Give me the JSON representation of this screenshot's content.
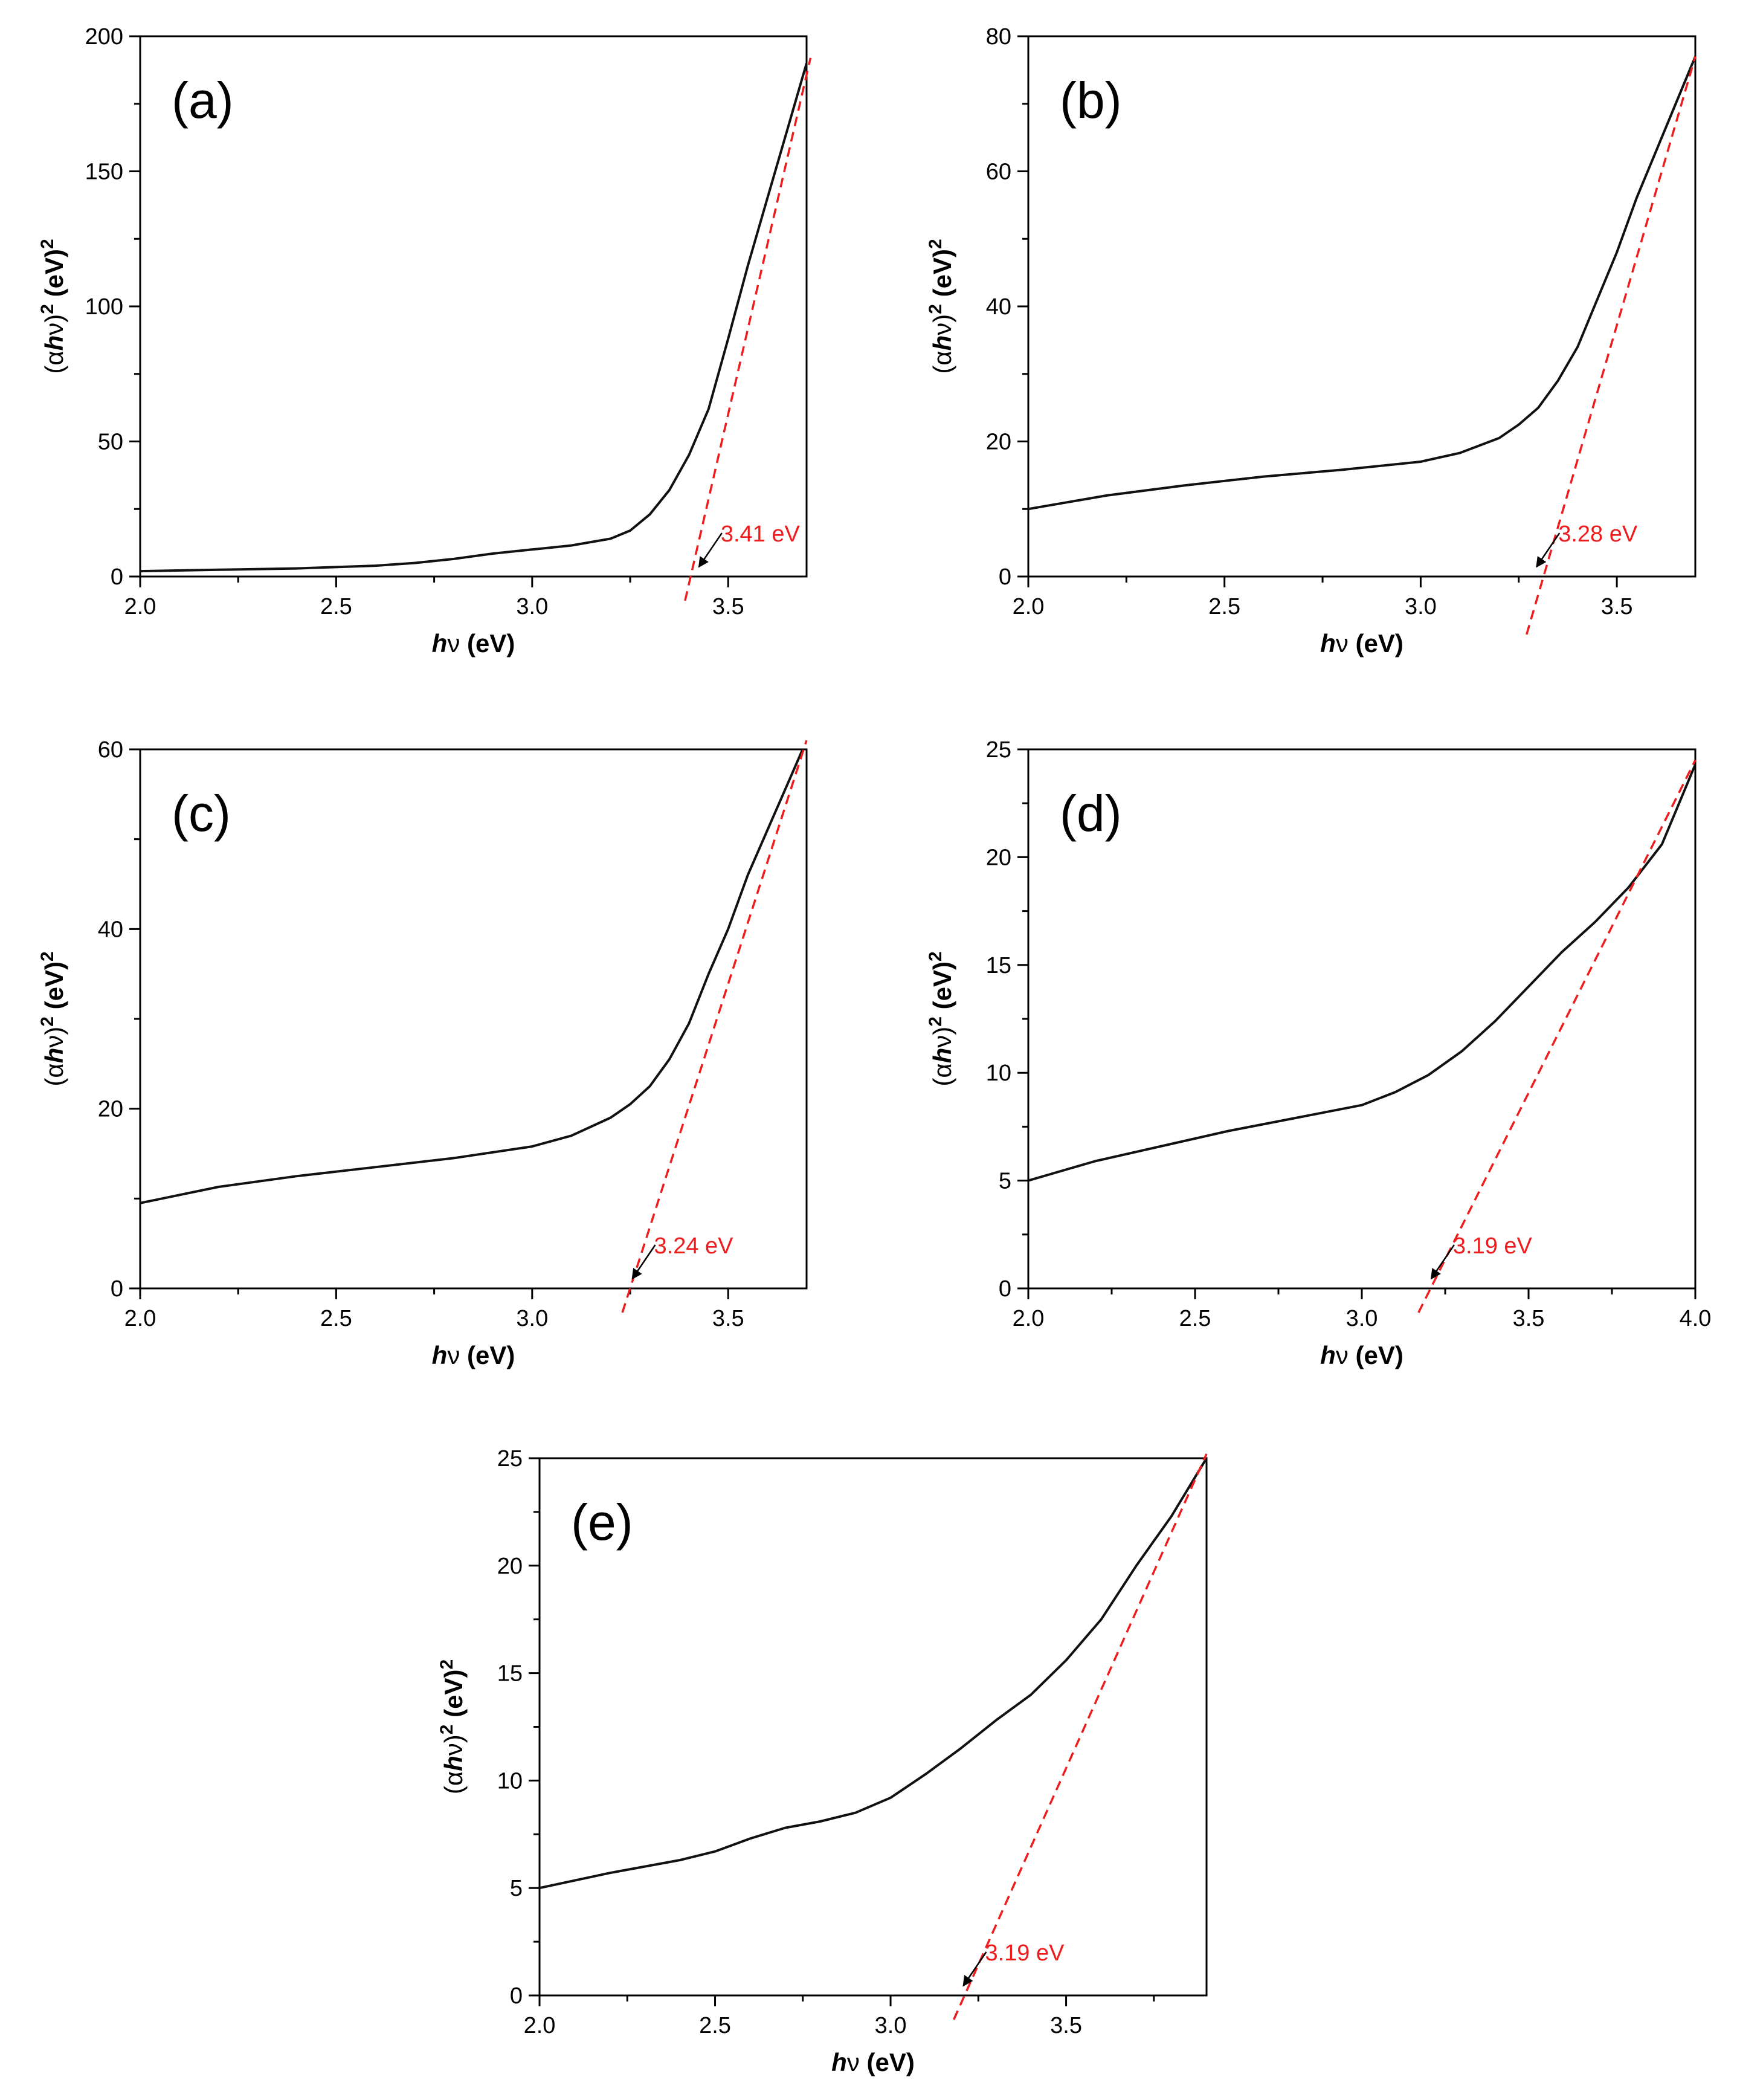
{
  "colors": {
    "curve": "#111111",
    "fit": "#ee1c1c",
    "arrow": "#000000",
    "axis": "#000000"
  },
  "chart_data": [
    {
      "type": "line",
      "panel_label": "(a)",
      "xlabel_main": "h",
      "xlabel_greek": "ν",
      "xlabel_unit": " (eV)",
      "ylabel_open": "(α",
      "ylabel_h": "h",
      "ylabel_nu": "ν",
      "ylabel_close": ")",
      "ylabel_sup": "2",
      "ylabel_unit": " (eV)",
      "xlim": [
        2.0,
        3.7
      ],
      "ylim": [
        0,
        200
      ],
      "xticks": [
        2.0,
        2.5,
        3.0,
        3.5
      ],
      "xtick_labels": [
        "2.0",
        "2.5",
        "3.0",
        "3.5"
      ],
      "yticks": [
        0,
        50,
        100,
        150,
        200
      ],
      "ytick_labels": [
        "0",
        "50",
        "100",
        "150",
        "200"
      ],
      "series": [
        {
          "name": "(αhν)² curve",
          "x": [
            2.0,
            2.2,
            2.4,
            2.6,
            2.7,
            2.8,
            2.9,
            3.0,
            3.1,
            3.2,
            3.25,
            3.3,
            3.35,
            3.4,
            3.45,
            3.5,
            3.55,
            3.6,
            3.65,
            3.7
          ],
          "y": [
            2,
            2.5,
            3,
            4,
            5,
            6.5,
            8.5,
            10,
            11.5,
            14,
            17,
            23,
            32,
            45,
            62,
            88,
            115,
            140,
            165,
            190
          ]
        }
      ],
      "fit_line": {
        "x": [
          3.39,
          3.71
        ],
        "y": [
          0,
          192
        ]
      },
      "annotation": {
        "text": "3.41 eV",
        "x": 3.41,
        "y": 0
      }
    },
    {
      "type": "line",
      "panel_label": "(b)",
      "xlabel_main": "h",
      "xlabel_greek": "ν",
      "xlabel_unit": " (eV)",
      "ylabel_open": "(α",
      "ylabel_h": "h",
      "ylabel_nu": "ν",
      "ylabel_close": ")",
      "ylabel_sup": "2",
      "ylabel_unit": " (eV)",
      "xlim": [
        2.0,
        3.7
      ],
      "ylim": [
        0,
        80
      ],
      "xticks": [
        2.0,
        2.5,
        3.0,
        3.5
      ],
      "xtick_labels": [
        "2.0",
        "2.5",
        "3.0",
        "3.5"
      ],
      "yticks": [
        0,
        20,
        40,
        60,
        80
      ],
      "ytick_labels": [
        "0",
        "20",
        "40",
        "60",
        "80"
      ],
      "series": [
        {
          "name": "(αhν)² curve",
          "x": [
            2.0,
            2.2,
            2.4,
            2.6,
            2.8,
            3.0,
            3.1,
            3.2,
            3.25,
            3.3,
            3.35,
            3.4,
            3.45,
            3.5,
            3.55,
            3.6,
            3.65,
            3.7
          ],
          "y": [
            10,
            12,
            13.5,
            14.8,
            15.8,
            17,
            18.3,
            20.5,
            22.5,
            25,
            29,
            34,
            41,
            48,
            56,
            63,
            70,
            77
          ]
        }
      ],
      "fit_line": {
        "x": [
          3.27,
          3.7
        ],
        "y": [
          -5,
          77
        ]
      },
      "annotation": {
        "text": "3.28 eV",
        "x": 3.28,
        "y": 0
      }
    },
    {
      "type": "line",
      "panel_label": "(c)",
      "xlabel_main": "h",
      "xlabel_greek": "ν",
      "xlabel_unit": " (eV)",
      "ylabel_open": "(α",
      "ylabel_h": "h",
      "ylabel_nu": "ν",
      "ylabel_close": ")",
      "ylabel_sup": "2",
      "ylabel_unit": " (eV)",
      "xlim": [
        2.0,
        3.7
      ],
      "ylim": [
        0,
        60
      ],
      "xticks": [
        2.0,
        2.5,
        3.0,
        3.5
      ],
      "xtick_labels": [
        "2.0",
        "2.5",
        "3.0",
        "3.5"
      ],
      "yticks": [
        0,
        20,
        40,
        60
      ],
      "ytick_labels": [
        "0",
        "20",
        "40",
        "60"
      ],
      "series": [
        {
          "name": "(αhν)² curve",
          "x": [
            2.0,
            2.2,
            2.4,
            2.6,
            2.8,
            3.0,
            3.1,
            3.2,
            3.25,
            3.3,
            3.35,
            3.4,
            3.45,
            3.5,
            3.55,
            3.6,
            3.65,
            3.7
          ],
          "y": [
            9.5,
            11.3,
            12.5,
            13.5,
            14.5,
            15.8,
            17,
            19,
            20.5,
            22.5,
            25.5,
            29.5,
            35,
            40,
            46,
            51,
            56,
            61
          ]
        }
      ],
      "fit_line": {
        "x": [
          3.23,
          3.7
        ],
        "y": [
          0,
          61
        ]
      },
      "annotation": {
        "text": "3.24 eV",
        "x": 3.24,
        "y": 0
      }
    },
    {
      "type": "line",
      "panel_label": "(d)",
      "xlabel_main": "h",
      "xlabel_greek": "ν",
      "xlabel_unit": " (eV)",
      "ylabel_open": "(α",
      "ylabel_h": "h",
      "ylabel_nu": "ν",
      "ylabel_close": ")",
      "ylabel_sup": "2",
      "ylabel_unit": " (eV)",
      "xlim": [
        2.0,
        4.0
      ],
      "ylim": [
        0,
        25
      ],
      "xticks": [
        2.0,
        2.5,
        3.0,
        3.5,
        4.0
      ],
      "xtick_labels": [
        "2.0",
        "2.5",
        "3.0",
        "3.5",
        "4.0"
      ],
      "yticks": [
        0,
        5,
        10,
        15,
        20,
        25
      ],
      "ytick_labels": [
        "0",
        "5",
        "10",
        "15",
        "20",
        "25"
      ],
      "series": [
        {
          "name": "(αhν)² curve",
          "x": [
            2.0,
            2.2,
            2.4,
            2.6,
            2.8,
            3.0,
            3.1,
            3.2,
            3.3,
            3.4,
            3.5,
            3.6,
            3.7,
            3.8,
            3.9,
            4.0
          ],
          "y": [
            5,
            5.9,
            6.6,
            7.3,
            7.9,
            8.5,
            9.1,
            9.9,
            11,
            12.4,
            14,
            15.6,
            17,
            18.6,
            20.6,
            24.3
          ]
        }
      ],
      "fit_line": {
        "x": [
          3.17,
          4.0
        ],
        "y": [
          0,
          24.5
        ]
      },
      "annotation": {
        "text": "3.19 eV",
        "x": 3.19,
        "y": 0
      }
    },
    {
      "type": "line",
      "panel_label": "(e)",
      "xlabel_main": "h",
      "xlabel_greek": "ν",
      "xlabel_unit": " (eV)",
      "ylabel_open": "(α",
      "ylabel_h": "h",
      "ylabel_nu": "ν",
      "ylabel_close": ")",
      "ylabel_sup": "2",
      "ylabel_unit": " (eV)",
      "xlim": [
        2.0,
        3.9
      ],
      "ylim": [
        0,
        25
      ],
      "xticks": [
        2.0,
        2.5,
        3.0,
        3.5
      ],
      "xtick_labels": [
        "2.0",
        "2.5",
        "3.0",
        "3.5"
      ],
      "yticks": [
        0,
        5,
        10,
        15,
        20,
        25
      ],
      "ytick_labels": [
        "0",
        "5",
        "10",
        "15",
        "20",
        "25"
      ],
      "series": [
        {
          "name": "(αhν)² curve",
          "x": [
            2.0,
            2.2,
            2.4,
            2.5,
            2.6,
            2.7,
            2.8,
            2.9,
            3.0,
            3.1,
            3.2,
            3.3,
            3.4,
            3.5,
            3.6,
            3.7,
            3.8,
            3.9
          ],
          "y": [
            5,
            5.7,
            6.3,
            6.7,
            7.3,
            7.8,
            8.1,
            8.5,
            9.2,
            10.3,
            11.5,
            12.8,
            14,
            15.6,
            17.5,
            20,
            22.3,
            25
          ]
        }
      ],
      "fit_line": {
        "x": [
          3.18,
          3.9
        ],
        "y": [
          0,
          25.2
        ]
      },
      "annotation": {
        "text": "3.19 eV",
        "x": 3.19,
        "y": 0
      }
    }
  ]
}
